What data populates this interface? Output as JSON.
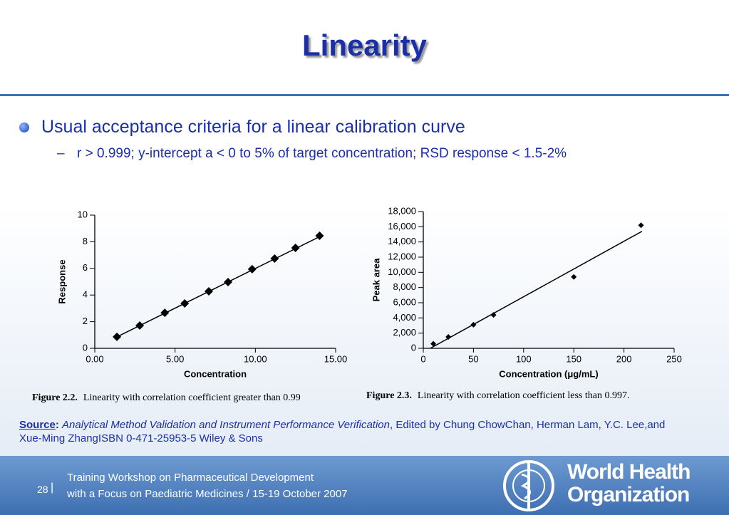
{
  "title": "Linearity",
  "bullets": [
    {
      "text": "Usual acceptance criteria for a linear calibration curve",
      "sub": "r > 0.999; y-intercept a < 0 to 5% of target concentration; RSD response < 1.5-2%"
    }
  ],
  "chart_data": [
    {
      "type": "scatter",
      "xlabel": "Concentration",
      "ylabel": "Response",
      "caption_label": "Figure 2.2.",
      "caption": "Linearity with correlation coefficient greater than 0.99",
      "x": [
        1.38,
        2.8,
        4.36,
        5.6,
        7.1,
        8.3,
        9.8,
        11.2,
        12.5,
        14.0
      ],
      "values": [
        0.86,
        1.71,
        2.67,
        3.37,
        4.28,
        4.97,
        5.94,
        6.74,
        7.54,
        8.45
      ],
      "color": "#000000",
      "fit": {
        "x": [
          1.2,
          14.2
        ],
        "values": [
          0.75,
          8.5
        ]
      },
      "xlim": [
        0,
        15
      ],
      "xticks": [
        {
          "value": 0,
          "label": "0.00"
        },
        {
          "value": 5,
          "label": "5.00"
        },
        {
          "value": 10,
          "label": "10.00"
        },
        {
          "value": 15,
          "label": "15.00"
        }
      ],
      "ylim": [
        0,
        10
      ],
      "yticks": [
        0,
        2,
        4,
        6,
        8,
        10
      ]
    },
    {
      "type": "scatter",
      "xlabel": "Concentration (μg/mL)",
      "ylabel": "Peak area",
      "caption_label": "Figure 2.3.",
      "caption": "Linearity with correlation coefficient less than 0.997.",
      "x": [
        10,
        25,
        50,
        70,
        150,
        217
      ],
      "values": [
        600,
        1500,
        3100,
        4400,
        9400,
        16200
      ],
      "color": "#000000",
      "fit": {
        "x": [
          7,
          218
        ],
        "values": [
          0,
          15400
        ]
      },
      "xlim": [
        0,
        250
      ],
      "xticks": [
        0,
        50,
        100,
        150,
        200,
        250
      ],
      "ylim": [
        0,
        18000
      ],
      "yticks": [
        0,
        {
          "value": 2000,
          "label": "2,000"
        },
        {
          "value": 4000,
          "label": "4,000"
        },
        {
          "value": 6000,
          "label": "6,000"
        },
        {
          "value": 8000,
          "label": "8,000"
        },
        {
          "value": 10000,
          "label": "10,000"
        },
        {
          "value": 12000,
          "label": "12,000"
        },
        {
          "value": 14000,
          "label": "14,000"
        },
        {
          "value": 16000,
          "label": "16,000"
        },
        {
          "value": 18000,
          "label": "18,000"
        }
      ]
    }
  ],
  "source": {
    "label": "Source",
    "separator": ":",
    "title": "Analytical Method Validation and Instrument Performance Verification",
    "text": ", Edited by Chung ChowChan, Herman Lam, Y.C. Lee,and Xue-Ming ZhangISBN 0-471-25953-5 Wiley & Sons"
  },
  "footer": {
    "page": "28",
    "line1": "Training Workshop on Pharmaceutical Development",
    "line2": "with a Focus on Paediatric Medicines / 15-19 October 2007",
    "org1": "World Health",
    "org2": "Organization"
  }
}
